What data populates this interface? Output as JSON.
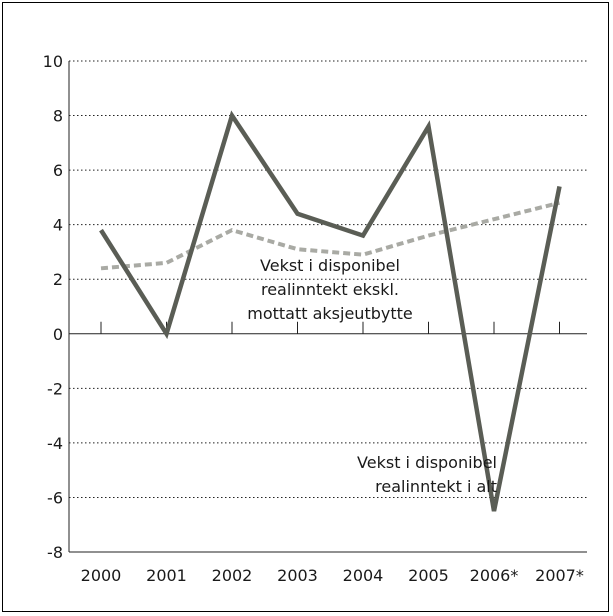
{
  "chart_data": {
    "type": "line",
    "title": "",
    "xlabel": "",
    "ylabel": "",
    "categories": [
      "2000",
      "2001",
      "2002",
      "2003",
      "2004",
      "2005",
      "2006*",
      "2007*"
    ],
    "ylim": [
      -8,
      10
    ],
    "yticks": [
      10,
      8,
      6,
      4,
      2,
      0,
      -2,
      -4,
      -6,
      -8
    ],
    "grid": "horizontal dotted",
    "legend": "none",
    "series": [
      {
        "values": [
          3.8,
          0.0,
          8.0,
          4.4,
          3.6,
          7.6,
          -6.5,
          5.4
        ],
        "color": "#5a5d55",
        "style": "solid"
      },
      {
        "values": [
          2.4,
          2.6,
          3.8,
          3.1,
          2.9,
          3.6,
          4.2,
          4.8
        ],
        "color": "#a9aaa4",
        "style": "dashed"
      }
    ],
    "annotations": [
      {
        "lines": [
          "Vekst i disponibel",
          "realinntekt ekskl.",
          "mottatt aksjeutbytte"
        ]
      },
      {
        "lines": [
          "Vekst i disponibel",
          "realinntekt i alt"
        ]
      }
    ]
  }
}
